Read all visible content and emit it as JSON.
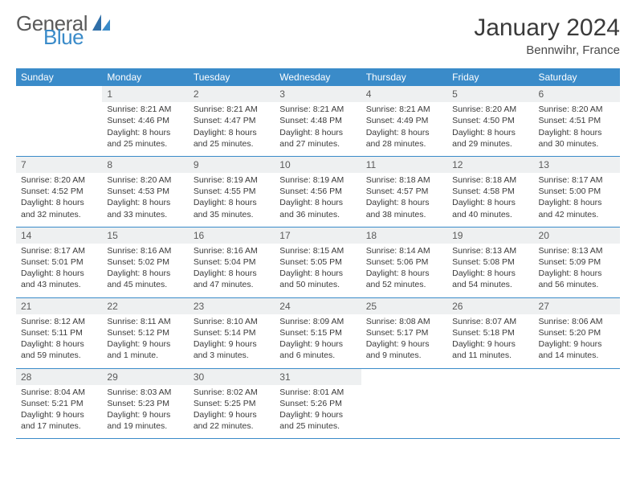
{
  "logo": {
    "part1": "General",
    "part2": "Blue"
  },
  "title": "January 2024",
  "location": "Bennwihr, France",
  "colors": {
    "header_bg": "#3a8bc9",
    "header_text": "#ffffff",
    "daynum_bg": "#eef0f1",
    "row_border": "#3a8bc9",
    "text": "#3a3a3a",
    "logo_gray": "#5a5a5a",
    "logo_blue": "#3a8bc9"
  },
  "weekdays": [
    "Sunday",
    "Monday",
    "Tuesday",
    "Wednesday",
    "Thursday",
    "Friday",
    "Saturday"
  ],
  "weeks": [
    [
      null,
      {
        "n": "1",
        "sr": "8:21 AM",
        "ss": "4:46 PM",
        "dl": "8 hours and 25 minutes."
      },
      {
        "n": "2",
        "sr": "8:21 AM",
        "ss": "4:47 PM",
        "dl": "8 hours and 25 minutes."
      },
      {
        "n": "3",
        "sr": "8:21 AM",
        "ss": "4:48 PM",
        "dl": "8 hours and 27 minutes."
      },
      {
        "n": "4",
        "sr": "8:21 AM",
        "ss": "4:49 PM",
        "dl": "8 hours and 28 minutes."
      },
      {
        "n": "5",
        "sr": "8:20 AM",
        "ss": "4:50 PM",
        "dl": "8 hours and 29 minutes."
      },
      {
        "n": "6",
        "sr": "8:20 AM",
        "ss": "4:51 PM",
        "dl": "8 hours and 30 minutes."
      }
    ],
    [
      {
        "n": "7",
        "sr": "8:20 AM",
        "ss": "4:52 PM",
        "dl": "8 hours and 32 minutes."
      },
      {
        "n": "8",
        "sr": "8:20 AM",
        "ss": "4:53 PM",
        "dl": "8 hours and 33 minutes."
      },
      {
        "n": "9",
        "sr": "8:19 AM",
        "ss": "4:55 PM",
        "dl": "8 hours and 35 minutes."
      },
      {
        "n": "10",
        "sr": "8:19 AM",
        "ss": "4:56 PM",
        "dl": "8 hours and 36 minutes."
      },
      {
        "n": "11",
        "sr": "8:18 AM",
        "ss": "4:57 PM",
        "dl": "8 hours and 38 minutes."
      },
      {
        "n": "12",
        "sr": "8:18 AM",
        "ss": "4:58 PM",
        "dl": "8 hours and 40 minutes."
      },
      {
        "n": "13",
        "sr": "8:17 AM",
        "ss": "5:00 PM",
        "dl": "8 hours and 42 minutes."
      }
    ],
    [
      {
        "n": "14",
        "sr": "8:17 AM",
        "ss": "5:01 PM",
        "dl": "8 hours and 43 minutes."
      },
      {
        "n": "15",
        "sr": "8:16 AM",
        "ss": "5:02 PM",
        "dl": "8 hours and 45 minutes."
      },
      {
        "n": "16",
        "sr": "8:16 AM",
        "ss": "5:04 PM",
        "dl": "8 hours and 47 minutes."
      },
      {
        "n": "17",
        "sr": "8:15 AM",
        "ss": "5:05 PM",
        "dl": "8 hours and 50 minutes."
      },
      {
        "n": "18",
        "sr": "8:14 AM",
        "ss": "5:06 PM",
        "dl": "8 hours and 52 minutes."
      },
      {
        "n": "19",
        "sr": "8:13 AM",
        "ss": "5:08 PM",
        "dl": "8 hours and 54 minutes."
      },
      {
        "n": "20",
        "sr": "8:13 AM",
        "ss": "5:09 PM",
        "dl": "8 hours and 56 minutes."
      }
    ],
    [
      {
        "n": "21",
        "sr": "8:12 AM",
        "ss": "5:11 PM",
        "dl": "8 hours and 59 minutes."
      },
      {
        "n": "22",
        "sr": "8:11 AM",
        "ss": "5:12 PM",
        "dl": "9 hours and 1 minute."
      },
      {
        "n": "23",
        "sr": "8:10 AM",
        "ss": "5:14 PM",
        "dl": "9 hours and 3 minutes."
      },
      {
        "n": "24",
        "sr": "8:09 AM",
        "ss": "5:15 PM",
        "dl": "9 hours and 6 minutes."
      },
      {
        "n": "25",
        "sr": "8:08 AM",
        "ss": "5:17 PM",
        "dl": "9 hours and 9 minutes."
      },
      {
        "n": "26",
        "sr": "8:07 AM",
        "ss": "5:18 PM",
        "dl": "9 hours and 11 minutes."
      },
      {
        "n": "27",
        "sr": "8:06 AM",
        "ss": "5:20 PM",
        "dl": "9 hours and 14 minutes."
      }
    ],
    [
      {
        "n": "28",
        "sr": "8:04 AM",
        "ss": "5:21 PM",
        "dl": "9 hours and 17 minutes."
      },
      {
        "n": "29",
        "sr": "8:03 AM",
        "ss": "5:23 PM",
        "dl": "9 hours and 19 minutes."
      },
      {
        "n": "30",
        "sr": "8:02 AM",
        "ss": "5:25 PM",
        "dl": "9 hours and 22 minutes."
      },
      {
        "n": "31",
        "sr": "8:01 AM",
        "ss": "5:26 PM",
        "dl": "9 hours and 25 minutes."
      },
      null,
      null,
      null
    ]
  ]
}
